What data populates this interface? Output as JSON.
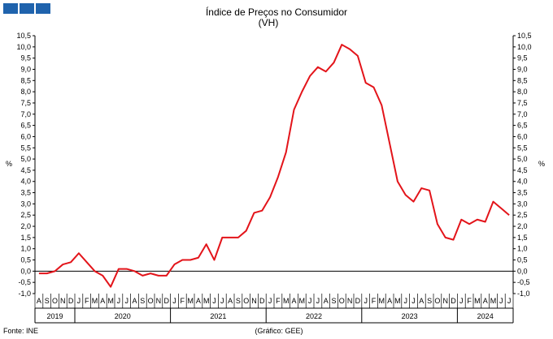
{
  "header": {
    "logo_icon": "institution-logo-icon"
  },
  "footer": {
    "source": "Fonte: INE",
    "credit": "(Gráfico: GEE)"
  },
  "chart_data": {
    "type": "line",
    "title": "Índice de Preços no Consumidor",
    "subtitle": "(VH)",
    "ylabel_left": "%",
    "ylabel_right": "%",
    "ylim": [
      -1.0,
      10.5
    ],
    "yticks": [
      "-1,0",
      "-0,5",
      "0,0",
      "0,5",
      "1,0",
      "1,5",
      "2,0",
      "2,5",
      "3,0",
      "3,5",
      "4,0",
      "4,5",
      "5,0",
      "5,5",
      "6,0",
      "6,5",
      "7,0",
      "7,5",
      "8,0",
      "8,5",
      "9,0",
      "9,5",
      "10,0",
      "10,5"
    ],
    "ytick_values": [
      -1.0,
      -0.5,
      0.0,
      0.5,
      1.0,
      1.5,
      2.0,
      2.5,
      3.0,
      3.5,
      4.0,
      4.5,
      5.0,
      5.5,
      6.0,
      6.5,
      7.0,
      7.5,
      8.0,
      8.5,
      9.0,
      9.5,
      10.0,
      10.5
    ],
    "x": [
      "2019-08",
      "2019-09",
      "2019-10",
      "2019-11",
      "2019-12",
      "2020-01",
      "2020-02",
      "2020-03",
      "2020-04",
      "2020-05",
      "2020-06",
      "2020-07",
      "2020-08",
      "2020-09",
      "2020-10",
      "2020-11",
      "2020-12",
      "2021-01",
      "2021-02",
      "2021-03",
      "2021-04",
      "2021-05",
      "2021-06",
      "2021-07",
      "2021-08",
      "2021-09",
      "2021-10",
      "2021-11",
      "2021-12",
      "2022-01",
      "2022-02",
      "2022-03",
      "2022-04",
      "2022-05",
      "2022-06",
      "2022-07",
      "2022-08",
      "2022-09",
      "2022-10",
      "2022-11",
      "2022-12",
      "2023-01",
      "2023-02",
      "2023-03",
      "2023-04",
      "2023-05",
      "2023-06",
      "2023-07",
      "2023-08",
      "2023-09",
      "2023-10",
      "2023-11",
      "2023-12",
      "2024-01",
      "2024-02",
      "2024-03",
      "2024-04",
      "2024-05",
      "2024-06",
      "2024-07"
    ],
    "month_labels": [
      "A",
      "S",
      "O",
      "N",
      "D",
      "J",
      "F",
      "M",
      "A",
      "M",
      "J",
      "J",
      "A",
      "S",
      "O",
      "N",
      "D",
      "J",
      "F",
      "M",
      "A",
      "M",
      "J",
      "J",
      "A",
      "S",
      "O",
      "N",
      "D",
      "J",
      "F",
      "M",
      "A",
      "M",
      "J",
      "J",
      "A",
      "S",
      "O",
      "N",
      "D",
      "J",
      "F",
      "M",
      "A",
      "M",
      "J",
      "J",
      "A",
      "S",
      "O",
      "N",
      "D",
      "J",
      "F",
      "M",
      "A",
      "M",
      "J",
      "J"
    ],
    "years": [
      {
        "label": "2019",
        "start": 0,
        "end": 4
      },
      {
        "label": "2020",
        "start": 5,
        "end": 16
      },
      {
        "label": "2021",
        "start": 17,
        "end": 28
      },
      {
        "label": "2022",
        "start": 29,
        "end": 40
      },
      {
        "label": "2023",
        "start": 41,
        "end": 52
      },
      {
        "label": "2024",
        "start": 53,
        "end": 59
      }
    ],
    "series": [
      {
        "color": "#e3141a",
        "values": [
          -0.1,
          -0.1,
          0.0,
          0.3,
          0.4,
          0.8,
          0.4,
          0.0,
          -0.2,
          -0.7,
          0.1,
          0.1,
          0.0,
          -0.2,
          -0.1,
          -0.2,
          -0.2,
          0.3,
          0.5,
          0.5,
          0.6,
          1.2,
          0.5,
          1.5,
          1.5,
          1.5,
          1.8,
          2.6,
          2.7,
          3.3,
          4.2,
          5.3,
          7.2,
          8.0,
          8.7,
          9.1,
          8.9,
          9.3,
          10.1,
          9.9,
          9.6,
          8.4,
          8.2,
          7.4,
          5.7,
          4.0,
          3.4,
          3.1,
          3.7,
          3.6,
          2.1,
          1.5,
          1.4,
          2.3,
          2.1,
          2.3,
          2.2,
          3.1,
          2.8,
          2.5
        ]
      }
    ],
    "grid": false,
    "legend": "none"
  }
}
